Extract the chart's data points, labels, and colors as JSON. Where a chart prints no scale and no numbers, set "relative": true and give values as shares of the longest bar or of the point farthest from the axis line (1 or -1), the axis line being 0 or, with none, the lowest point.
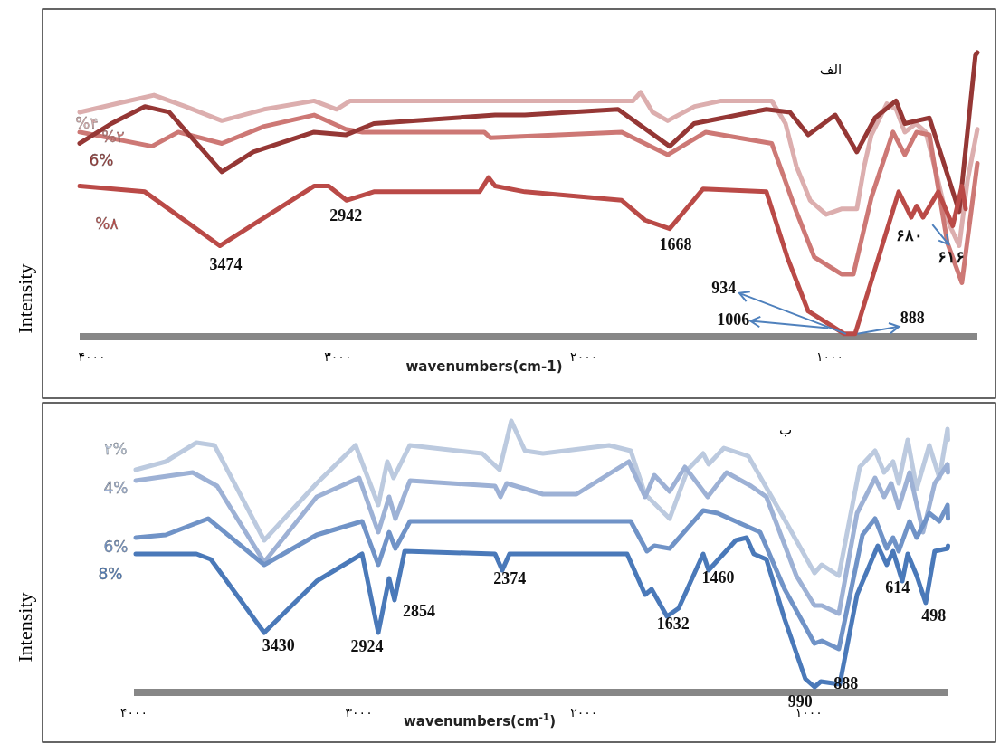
{
  "chart_data": [
    {
      "type": "line",
      "title": "الف",
      "xlabel": "wavenumbers(cm-1)",
      "ylabel": "Intensity",
      "relative": true,
      "xlim": [
        4050,
        400
      ],
      "xticks": [
        {
          "value": 4000,
          "label": "۴۰۰۰"
        },
        {
          "value": 3000,
          "label": "۳۰۰۰"
        },
        {
          "value": 2000,
          "label": "۲۰۰۰"
        },
        {
          "value": 1000,
          "label": "۱۰۰۰"
        }
      ],
      "series": [
        {
          "name": "%۴",
          "color": "#dcaeae",
          "x": [
            4050,
            3900,
            3748,
            3620,
            3472,
            3300,
            3097,
            3005,
            2950,
            2500,
            2000,
            1800,
            1769,
            1720,
            1659,
            1550,
            1442,
            1236,
            1180,
            1136,
            1080,
            1015,
            950,
            890,
            860,
            831,
            768,
            730,
            695,
            650,
            610,
            560,
            522,
            474,
            440,
            400
          ],
          "values": [
            0.79,
            0.82,
            0.85,
            0.81,
            0.76,
            0.8,
            0.83,
            0.8,
            0.83,
            0.83,
            0.83,
            0.83,
            0.86,
            0.79,
            0.76,
            0.81,
            0.83,
            0.83,
            0.75,
            0.6,
            0.48,
            0.43,
            0.45,
            0.45,
            0.6,
            0.71,
            0.82,
            0.8,
            0.72,
            0.75,
            0.72,
            0.55,
            0.41,
            0.32,
            0.55,
            0.73
          ]
        },
        {
          "name": "%۲",
          "color": "#cd7875",
          "x": [
            4050,
            3756,
            3649,
            3472,
            3300,
            3097,
            2968,
            2900,
            2405,
            2380,
            1846,
            1659,
            1504,
            1236,
            1136,
            1063,
            952,
            904,
            831,
            743,
            695,
            647,
            595,
            522,
            463,
            400
          ],
          "values": [
            0.72,
            0.67,
            0.72,
            0.68,
            0.74,
            0.78,
            0.73,
            0.72,
            0.72,
            0.7,
            0.72,
            0.64,
            0.72,
            0.68,
            0.44,
            0.28,
            0.22,
            0.22,
            0.49,
            0.72,
            0.64,
            0.72,
            0.71,
            0.33,
            0.19,
            0.61
          ]
        },
        {
          "name": "6%",
          "color": "#953735",
          "x": [
            4050,
            3921,
            3785,
            3686,
            3472,
            3344,
            3097,
            2968,
            2854,
            2361,
            2240,
            1861,
            1651,
            1552,
            1258,
            1162,
            1088,
            978,
            890,
            816,
            731,
            695,
            595,
            474,
            408,
            400
          ],
          "values": [
            0.68,
            0.75,
            0.81,
            0.79,
            0.58,
            0.65,
            0.72,
            0.71,
            0.75,
            0.78,
            0.78,
            0.8,
            0.67,
            0.75,
            0.8,
            0.79,
            0.71,
            0.78,
            0.65,
            0.77,
            0.83,
            0.75,
            0.77,
            0.44,
            0.99,
            1.0
          ]
        },
        {
          "name": "%۸",
          "color": "#ba4a47",
          "x": [
            4050,
            3785,
            3480,
            3097,
            3038,
            2965,
            2854,
            2424,
            2387,
            2361,
            2240,
            1846,
            1751,
            1651,
            1515,
            1258,
            1173,
            1088,
            941,
            897,
            720,
            669,
            647,
            621,
            559,
            500,
            463,
            448
          ],
          "values": [
            0.53,
            0.51,
            0.32,
            0.53,
            0.53,
            0.48,
            0.51,
            0.51,
            0.56,
            0.53,
            0.51,
            0.48,
            0.41,
            0.38,
            0.52,
            0.51,
            0.28,
            0.09,
            0.01,
            0.01,
            0.51,
            0.42,
            0.46,
            0.42,
            0.51,
            0.39,
            0.53,
            0.45
          ]
        }
      ],
      "annotations": [
        {
          "text": "3474",
          "x": 3474,
          "y": 0.32
        },
        {
          "text": "2942",
          "x": 2942,
          "y": 0.48
        },
        {
          "text": "1668",
          "x": 1668,
          "y": 0.38
        },
        {
          "text": "934",
          "x": 934,
          "y": 0.01
        },
        {
          "text": "1006",
          "x": 1006,
          "y": 0.03
        },
        {
          "text": "888",
          "x": 888,
          "y": 0.01
        },
        {
          "text": "۶۸۰",
          "x": 680,
          "y": 0.45
        },
        {
          "text": "۶۱۶",
          "x": 616,
          "y": 0.42
        }
      ]
    },
    {
      "type": "line",
      "title": "ب",
      "xlabel": "wavenumbers(cm$^{-1}$)",
      "ylabel": "Intensity",
      "relative": true,
      "xlim": [
        4000,
        380
      ],
      "xticks": [
        {
          "value": 4000,
          "label": "۴۰۰۰"
        },
        {
          "value": 3000,
          "label": "۳۰۰۰"
        },
        {
          "value": 2000,
          "label": "۲۰۰۰"
        },
        {
          "value": 1000,
          "label": "۱۰۰۰"
        }
      ],
      "series": [
        {
          "name": "۲%",
          "color": "#bccadf",
          "x": [
            3992,
            3859,
            3722,
            3642,
            3421,
            3188,
            3015,
            2914,
            2874,
            2846,
            2774,
            2452,
            2375,
            2323,
            2262,
            2182,
            1888,
            1792,
            1728,
            1619,
            1539,
            1470,
            1446,
            1378,
            1269,
            1124,
            975,
            943,
            867,
            774,
            706,
            666,
            626,
            601,
            561,
            521,
            465,
            420,
            384,
            382
          ],
          "values": [
            0.82,
            0.85,
            0.92,
            0.91,
            0.56,
            0.77,
            0.91,
            0.69,
            0.85,
            0.79,
            0.91,
            0.88,
            0.82,
            1.0,
            0.89,
            0.88,
            0.91,
            0.89,
            0.73,
            0.64,
            0.82,
            0.88,
            0.84,
            0.9,
            0.87,
            0.66,
            0.44,
            0.47,
            0.43,
            0.83,
            0.89,
            0.81,
            0.85,
            0.77,
            0.93,
            0.75,
            0.91,
            0.79,
            0.97,
            0.93
          ]
        },
        {
          "name": "4%",
          "color": "#9db1d5",
          "x": [
            3992,
            3739,
            3630,
            3421,
            3188,
            2999,
            2914,
            2866,
            2838,
            2773,
            2395,
            2371,
            2343,
            2182,
            2033,
            1800,
            1728,
            1687,
            1619,
            1551,
            1450,
            1366,
            1257,
            1189,
            1056,
            975,
            943,
            867,
            786,
            706,
            666,
            634,
            601,
            553,
            493,
            441,
            384,
            382
          ],
          "values": [
            0.78,
            0.81,
            0.76,
            0.48,
            0.72,
            0.79,
            0.59,
            0.72,
            0.64,
            0.78,
            0.76,
            0.72,
            0.77,
            0.73,
            0.73,
            0.85,
            0.72,
            0.8,
            0.74,
            0.83,
            0.72,
            0.81,
            0.76,
            0.72,
            0.43,
            0.32,
            0.32,
            0.29,
            0.66,
            0.79,
            0.72,
            0.77,
            0.68,
            0.81,
            0.59,
            0.77,
            0.84,
            0.81
          ]
        },
        {
          "name": "6%",
          "color": "#7093c7",
          "x": [
            3992,
            3859,
            3670,
            3421,
            3188,
            2986,
            2914,
            2866,
            2838,
            2773,
            2182,
            1792,
            1720,
            1687,
            1619,
            1470,
            1406,
            1217,
            1108,
            975,
            943,
            867,
            762,
            706,
            654,
            626,
            601,
            553,
            521,
            465,
            420,
            384,
            382
          ],
          "values": [
            0.57,
            0.58,
            0.64,
            0.47,
            0.58,
            0.63,
            0.47,
            0.59,
            0.53,
            0.63,
            0.63,
            0.63,
            0.52,
            0.54,
            0.53,
            0.67,
            0.66,
            0.59,
            0.38,
            0.18,
            0.19,
            0.16,
            0.58,
            0.64,
            0.53,
            0.57,
            0.52,
            0.63,
            0.57,
            0.66,
            0.63,
            0.69,
            0.64
          ]
        },
        {
          "name": "8%",
          "color": "#4a79b9",
          "x": [
            3992,
            3722,
            3658,
            3421,
            3188,
            2986,
            2914,
            2866,
            2842,
            2797,
            2395,
            2363,
            2331,
            2182,
            1808,
            1728,
            1699,
            1631,
            1579,
            1470,
            1446,
            1325,
            1277,
            1245,
            1189,
            1108,
            1016,
            975,
            947,
            863,
            786,
            694,
            654,
            626,
            585,
            561,
            521,
            481,
            441,
            384,
            382
          ],
          "values": [
            0.51,
            0.51,
            0.49,
            0.22,
            0.41,
            0.51,
            0.22,
            0.42,
            0.34,
            0.52,
            0.51,
            0.45,
            0.51,
            0.51,
            0.51,
            0.36,
            0.38,
            0.28,
            0.31,
            0.51,
            0.45,
            0.56,
            0.57,
            0.51,
            0.49,
            0.27,
            0.05,
            0.02,
            0.04,
            0.03,
            0.36,
            0.54,
            0.47,
            0.52,
            0.41,
            0.51,
            0.43,
            0.33,
            0.52,
            0.53,
            0.54
          ]
        }
      ],
      "annotations": [
        {
          "text": "3430",
          "x": 3430,
          "y": 0.22
        },
        {
          "text": "2924",
          "x": 2924,
          "y": 0.22
        },
        {
          "text": "2854",
          "x": 2854,
          "y": 0.34
        },
        {
          "text": "2374",
          "x": 2374,
          "y": 0.45
        },
        {
          "text": "1632",
          "x": 1632,
          "y": 0.28
        },
        {
          "text": "1460",
          "x": 1460,
          "y": 0.45
        },
        {
          "text": "990",
          "x": 990,
          "y": 0.02
        },
        {
          "text": "888",
          "x": 888,
          "y": 0.03
        },
        {
          "text": "614",
          "x": 614,
          "y": 0.41
        },
        {
          "text": "498",
          "x": 498,
          "y": 0.33
        }
      ]
    }
  ]
}
